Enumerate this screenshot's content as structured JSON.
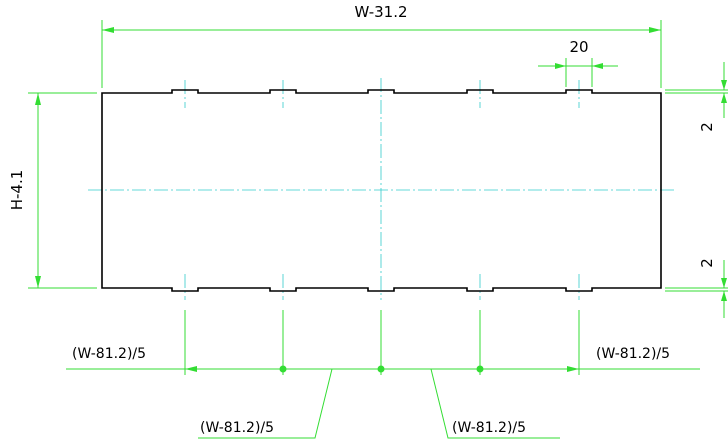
{
  "dimensions": {
    "overall_width": "W-31.2",
    "notch_width": "20",
    "height": "H-4.1",
    "top_margin": "2",
    "bottom_margin": "2",
    "pitch_left": "(W-81.2)/5",
    "pitch_right": "(W-81.2)/5",
    "pitch_mid_left": "(W-81.2)/5",
    "pitch_mid_right": "(W-81.2)/5"
  },
  "colors": {
    "dimension": "#33dd33",
    "centerline": "#33cccc",
    "outline": "#000000"
  }
}
